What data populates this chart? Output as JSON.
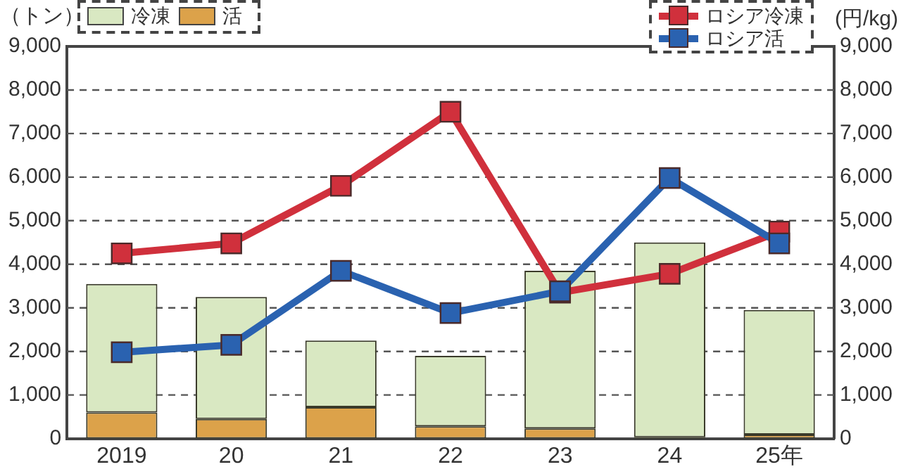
{
  "chart_data": {
    "type": "bar",
    "stacked": true,
    "categories": [
      "2019",
      "20",
      "21",
      "22",
      "23",
      "24",
      "25年"
    ],
    "ylabel": "（トン）",
    "y2label": "(円/kg)",
    "ylim": [
      0,
      9000
    ],
    "yticks": [
      {
        "value": 0,
        "label": "0"
      },
      {
        "value": 1000,
        "label": "1,000"
      },
      {
        "value": 2000,
        "label": "2,000"
      },
      {
        "value": 3000,
        "label": "3,000"
      },
      {
        "value": 4000,
        "label": "4,000"
      },
      {
        "value": 5000,
        "label": "5,000"
      },
      {
        "value": 6000,
        "label": "6,000"
      },
      {
        "value": 7000,
        "label": "7,000"
      },
      {
        "value": 8000,
        "label": "8,000"
      },
      {
        "value": 9000,
        "label": "9,000"
      }
    ],
    "y2lim": [
      0,
      9000
    ],
    "y2ticks": [
      {
        "value": 0,
        "label": "0"
      },
      {
        "value": 1000,
        "label": "1,000"
      },
      {
        "value": 2000,
        "label": "2,000"
      },
      {
        "value": 3000,
        "label": "3,000"
      },
      {
        "value": 4000,
        "label": "4,000"
      },
      {
        "value": 5000,
        "label": "5,000"
      },
      {
        "value": 6000,
        "label": "6,000"
      },
      {
        "value": 7000,
        "label": "7,000"
      },
      {
        "value": 8000,
        "label": "8,000"
      },
      {
        "value": 9000,
        "label": "9,000"
      }
    ],
    "grid": "y",
    "legend": "top",
    "marker": "square",
    "series": [
      {
        "name": "活",
        "color": "#dca24a",
        "values": [
          600,
          450,
          720,
          280,
          230,
          30,
          90
        ]
      },
      {
        "name": "冷凍",
        "color": "#d9e8c2",
        "values": [
          2950,
          2800,
          1530,
          1620,
          3620,
          4470,
          2860
        ]
      },
      {
        "name": "ロシア冷凍",
        "type": "line",
        "axis": "y2",
        "color": "#d0303c",
        "values": [
          4250,
          4480,
          5800,
          7500,
          3350,
          3780,
          4750
        ]
      },
      {
        "name": "ロシア活",
        "type": "line",
        "axis": "y2",
        "color": "#2a62b0",
        "values": [
          1980,
          2150,
          3850,
          2880,
          3380,
          5980,
          4480
        ]
      }
    ]
  }
}
